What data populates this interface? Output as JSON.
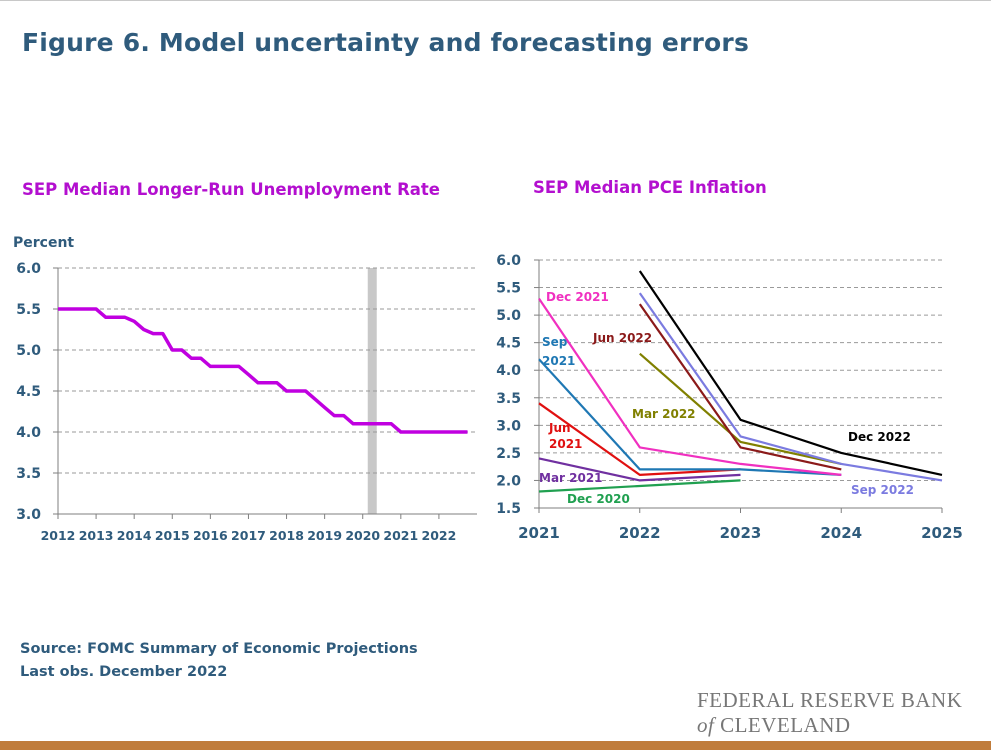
{
  "title": "Figure 6. Model uncertainty and forecasting errors",
  "source_line": "Source: FOMC Summary of Economic Projections",
  "last_obs_line": "Last obs. December 2022",
  "logo": {
    "line1": "FEDERAL RESERVE BANK",
    "of": "of",
    "city": "CLEVELAND"
  },
  "colors": {
    "title": "#2f5b7c",
    "chart_title": "#b30fcf",
    "bottom_bar": "#c07c3b",
    "grid": "#9a9a9a",
    "shaded_band": "#c8c8c8"
  },
  "chart_data": [
    {
      "type": "line",
      "title": "SEP Median Longer-Run Unemployment Rate",
      "ylabel": "Percent",
      "ylim": [
        3.0,
        6.0
      ],
      "xlim": [
        2012,
        2023
      ],
      "yticks": [
        "3.0",
        "3.5",
        "4.0",
        "4.5",
        "5.0",
        "5.5",
        "6.0"
      ],
      "xticks": [
        "2012",
        "2013",
        "2014",
        "2015",
        "2016",
        "2017",
        "2018",
        "2019",
        "2020",
        "2021",
        "2022"
      ],
      "grid": true,
      "shaded_band": {
        "x": 2020.25
      },
      "series": [
        {
          "color": "#c000e0",
          "points": [
            [
              2012.0,
              5.5
            ],
            [
              2013.0,
              5.5
            ],
            [
              2013.25,
              5.4
            ],
            [
              2013.75,
              5.4
            ],
            [
              2014.0,
              5.35
            ],
            [
              2014.25,
              5.25
            ],
            [
              2014.5,
              5.2
            ],
            [
              2014.75,
              5.2
            ],
            [
              2015.0,
              5.0
            ],
            [
              2015.25,
              5.0
            ],
            [
              2015.5,
              4.9
            ],
            [
              2015.75,
              4.9
            ],
            [
              2016.0,
              4.8
            ],
            [
              2016.75,
              4.8
            ],
            [
              2017.0,
              4.7
            ],
            [
              2017.25,
              4.6
            ],
            [
              2017.75,
              4.6
            ],
            [
              2018.0,
              4.5
            ],
            [
              2018.5,
              4.5
            ],
            [
              2018.75,
              4.4
            ],
            [
              2019.0,
              4.3
            ],
            [
              2019.25,
              4.2
            ],
            [
              2019.5,
              4.2
            ],
            [
              2019.75,
              4.1
            ],
            [
              2020.75,
              4.1
            ],
            [
              2021.0,
              4.0
            ],
            [
              2022.75,
              4.0
            ]
          ]
        }
      ]
    },
    {
      "type": "line",
      "title": "SEP Median PCE Inflation",
      "ylim": [
        1.5,
        6.0
      ],
      "xlim": [
        2021,
        2025
      ],
      "yticks": [
        "1.5",
        "2.0",
        "2.5",
        "3.0",
        "3.5",
        "4.0",
        "4.5",
        "5.0",
        "5.5",
        "6.0"
      ],
      "xticks": [
        "2021",
        "2022",
        "2023",
        "2024",
        "2025"
      ],
      "grid": true,
      "series": [
        {
          "name": "Dec 2020",
          "color": "#20a050",
          "x": [
            2021,
            2022,
            2023
          ],
          "y": [
            1.8,
            1.9,
            2.0
          ]
        },
        {
          "name": "Mar 2021",
          "color": "#7030a0",
          "x": [
            2021,
            2022,
            2023
          ],
          "y": [
            2.4,
            2.0,
            2.1
          ]
        },
        {
          "name": "Jun 2021",
          "color": "#e01010",
          "x": [
            2021,
            2022,
            2023
          ],
          "y": [
            3.4,
            2.1,
            2.2
          ]
        },
        {
          "name": "Sep 2021",
          "color": "#1f78b4",
          "x": [
            2021,
            2022,
            2023,
            2024
          ],
          "y": [
            4.2,
            2.2,
            2.2,
            2.1
          ]
        },
        {
          "name": "Dec 2021",
          "color": "#f030c0",
          "x": [
            2021,
            2022,
            2023,
            2024
          ],
          "y": [
            5.3,
            2.6,
            2.3,
            2.1
          ]
        },
        {
          "name": "Mar 2022",
          "color": "#808000",
          "x": [
            2022,
            2023,
            2024
          ],
          "y": [
            4.3,
            2.7,
            2.3
          ]
        },
        {
          "name": "Jun 2022",
          "color": "#8b1a1a",
          "x": [
            2022,
            2023,
            2024
          ],
          "y": [
            5.2,
            2.6,
            2.2
          ]
        },
        {
          "name": "Sep 2022",
          "color": "#7b7be0",
          "x": [
            2022,
            2023,
            2024,
            2025
          ],
          "y": [
            5.4,
            2.8,
            2.3,
            2.0
          ]
        },
        {
          "name": "Dec 2022",
          "color": "#000000",
          "x": [
            2022,
            2023,
            2024,
            2025
          ],
          "y": [
            5.8,
            3.1,
            2.5,
            2.1
          ]
        }
      ],
      "labels": [
        {
          "text": "Dec 2021",
          "color": "#f030c0"
        },
        {
          "text": "Sep",
          "color": "#1f78b4"
        },
        {
          "text": "2021",
          "color": "#1f78b4"
        },
        {
          "text": "Jun 2022",
          "color": "#8b1a1a"
        },
        {
          "text": "Mar 2022",
          "color": "#808000"
        },
        {
          "text": "Jun",
          "color": "#e01010"
        },
        {
          "text": "2021",
          "color": "#e01010"
        },
        {
          "text": "Dec 2022",
          "color": "#000000"
        },
        {
          "text": "Mar 2021",
          "color": "#7030a0"
        },
        {
          "text": "Sep 2022",
          "color": "#7b7be0"
        },
        {
          "text": "Dec 2020",
          "color": "#20a050"
        }
      ]
    }
  ]
}
